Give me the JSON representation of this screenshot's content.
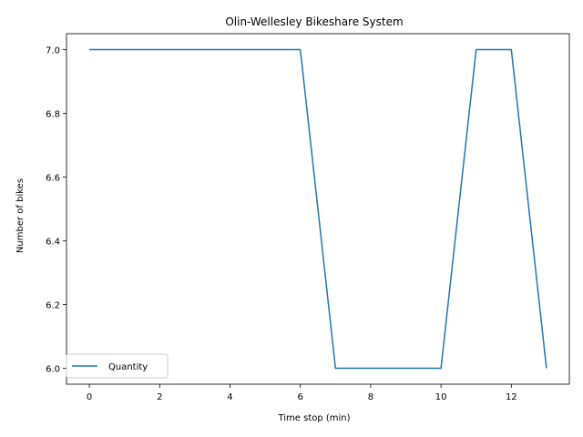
{
  "chart_data": {
    "type": "line",
    "title": "Olin-Wellesley Bikeshare System",
    "xlabel": "Time stop (min)",
    "ylabel": "Number of bikes",
    "xlim": [
      -0.65,
      13.65
    ],
    "ylim": [
      5.95,
      7.05
    ],
    "xticks": [
      0,
      2,
      4,
      6,
      8,
      10,
      12
    ],
    "xtick_labels": [
      "0",
      "2",
      "4",
      "6",
      "8",
      "10",
      "12"
    ],
    "yticks": [
      6.0,
      6.2,
      6.4,
      6.6,
      6.8,
      7.0
    ],
    "ytick_labels": [
      "6.0",
      "6.2",
      "6.4",
      "6.6",
      "6.8",
      "7.0"
    ],
    "grid": false,
    "legend_position": "lower-left",
    "series": [
      {
        "name": "Quantity",
        "color": "#1f77b4",
        "x": [
          0,
          1,
          2,
          3,
          4,
          5,
          6,
          7,
          8,
          9,
          10,
          11,
          12,
          13
        ],
        "y": [
          7,
          7,
          7,
          7,
          7,
          7,
          7,
          6,
          6,
          6,
          6,
          7,
          7,
          6
        ]
      }
    ]
  }
}
